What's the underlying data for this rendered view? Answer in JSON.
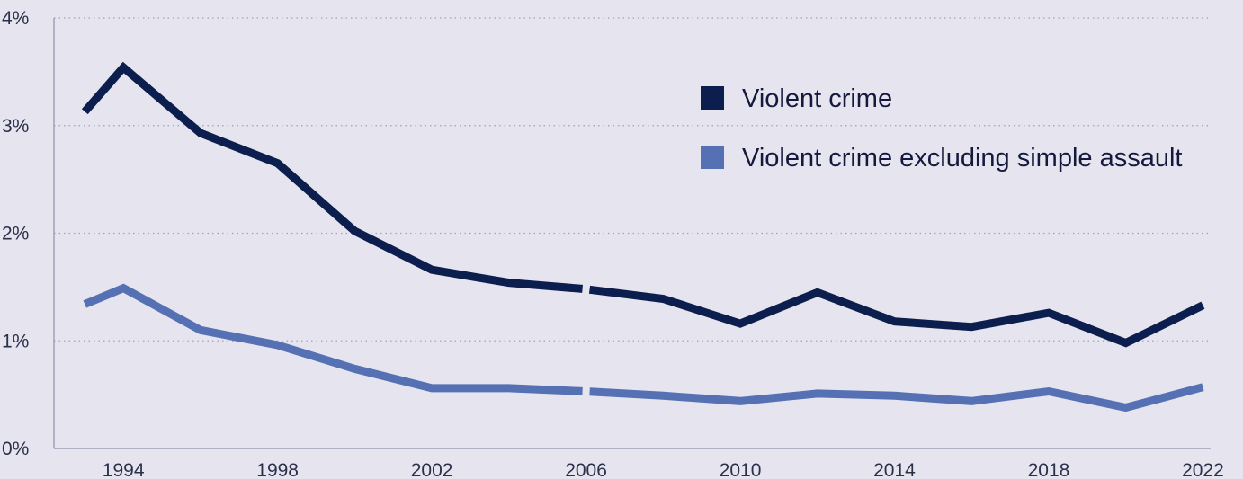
{
  "chart_data": {
    "type": "line",
    "title": "",
    "xlabel": "",
    "ylabel": "",
    "xlim": [
      1992.2,
      2022.2
    ],
    "ylim": [
      0,
      4
    ],
    "y_ticks": [
      0,
      1,
      2,
      3,
      4
    ],
    "y_tick_labels": [
      "0%",
      "1%",
      "2%",
      "3%",
      "4%"
    ],
    "x_ticks": [
      1994,
      1998,
      2002,
      2006,
      2010,
      2014,
      2018,
      2022
    ],
    "x_tick_labels": [
      "1994",
      "1998",
      "2002",
      "2006",
      "2010",
      "2014",
      "2018",
      "2022"
    ],
    "grid": "horizontal-dotted",
    "legend_position": "top-right",
    "break_at": 2006,
    "series": [
      {
        "name": "Violent crime",
        "color": "#0b1e4e",
        "x": [
          1993,
          1994,
          1996,
          1998,
          2000,
          2002,
          2004,
          2006,
          2008,
          2010,
          2012,
          2014,
          2016,
          2018,
          2020,
          2022
        ],
        "values": [
          3.13,
          3.54,
          2.93,
          2.65,
          2.02,
          1.66,
          1.54,
          1.48,
          1.39,
          1.16,
          1.45,
          1.18,
          1.13,
          1.26,
          0.98,
          1.33
        ]
      },
      {
        "name": "Violent crime excluding simple assault",
        "color": "#5570b3",
        "x": [
          1993,
          1994,
          1996,
          1998,
          2000,
          2002,
          2004,
          2006,
          2008,
          2010,
          2012,
          2014,
          2016,
          2018,
          2020,
          2022
        ],
        "values": [
          1.34,
          1.49,
          1.1,
          0.96,
          0.74,
          0.56,
          0.56,
          0.53,
          0.49,
          0.44,
          0.51,
          0.49,
          0.44,
          0.53,
          0.38,
          0.57
        ]
      }
    ]
  }
}
